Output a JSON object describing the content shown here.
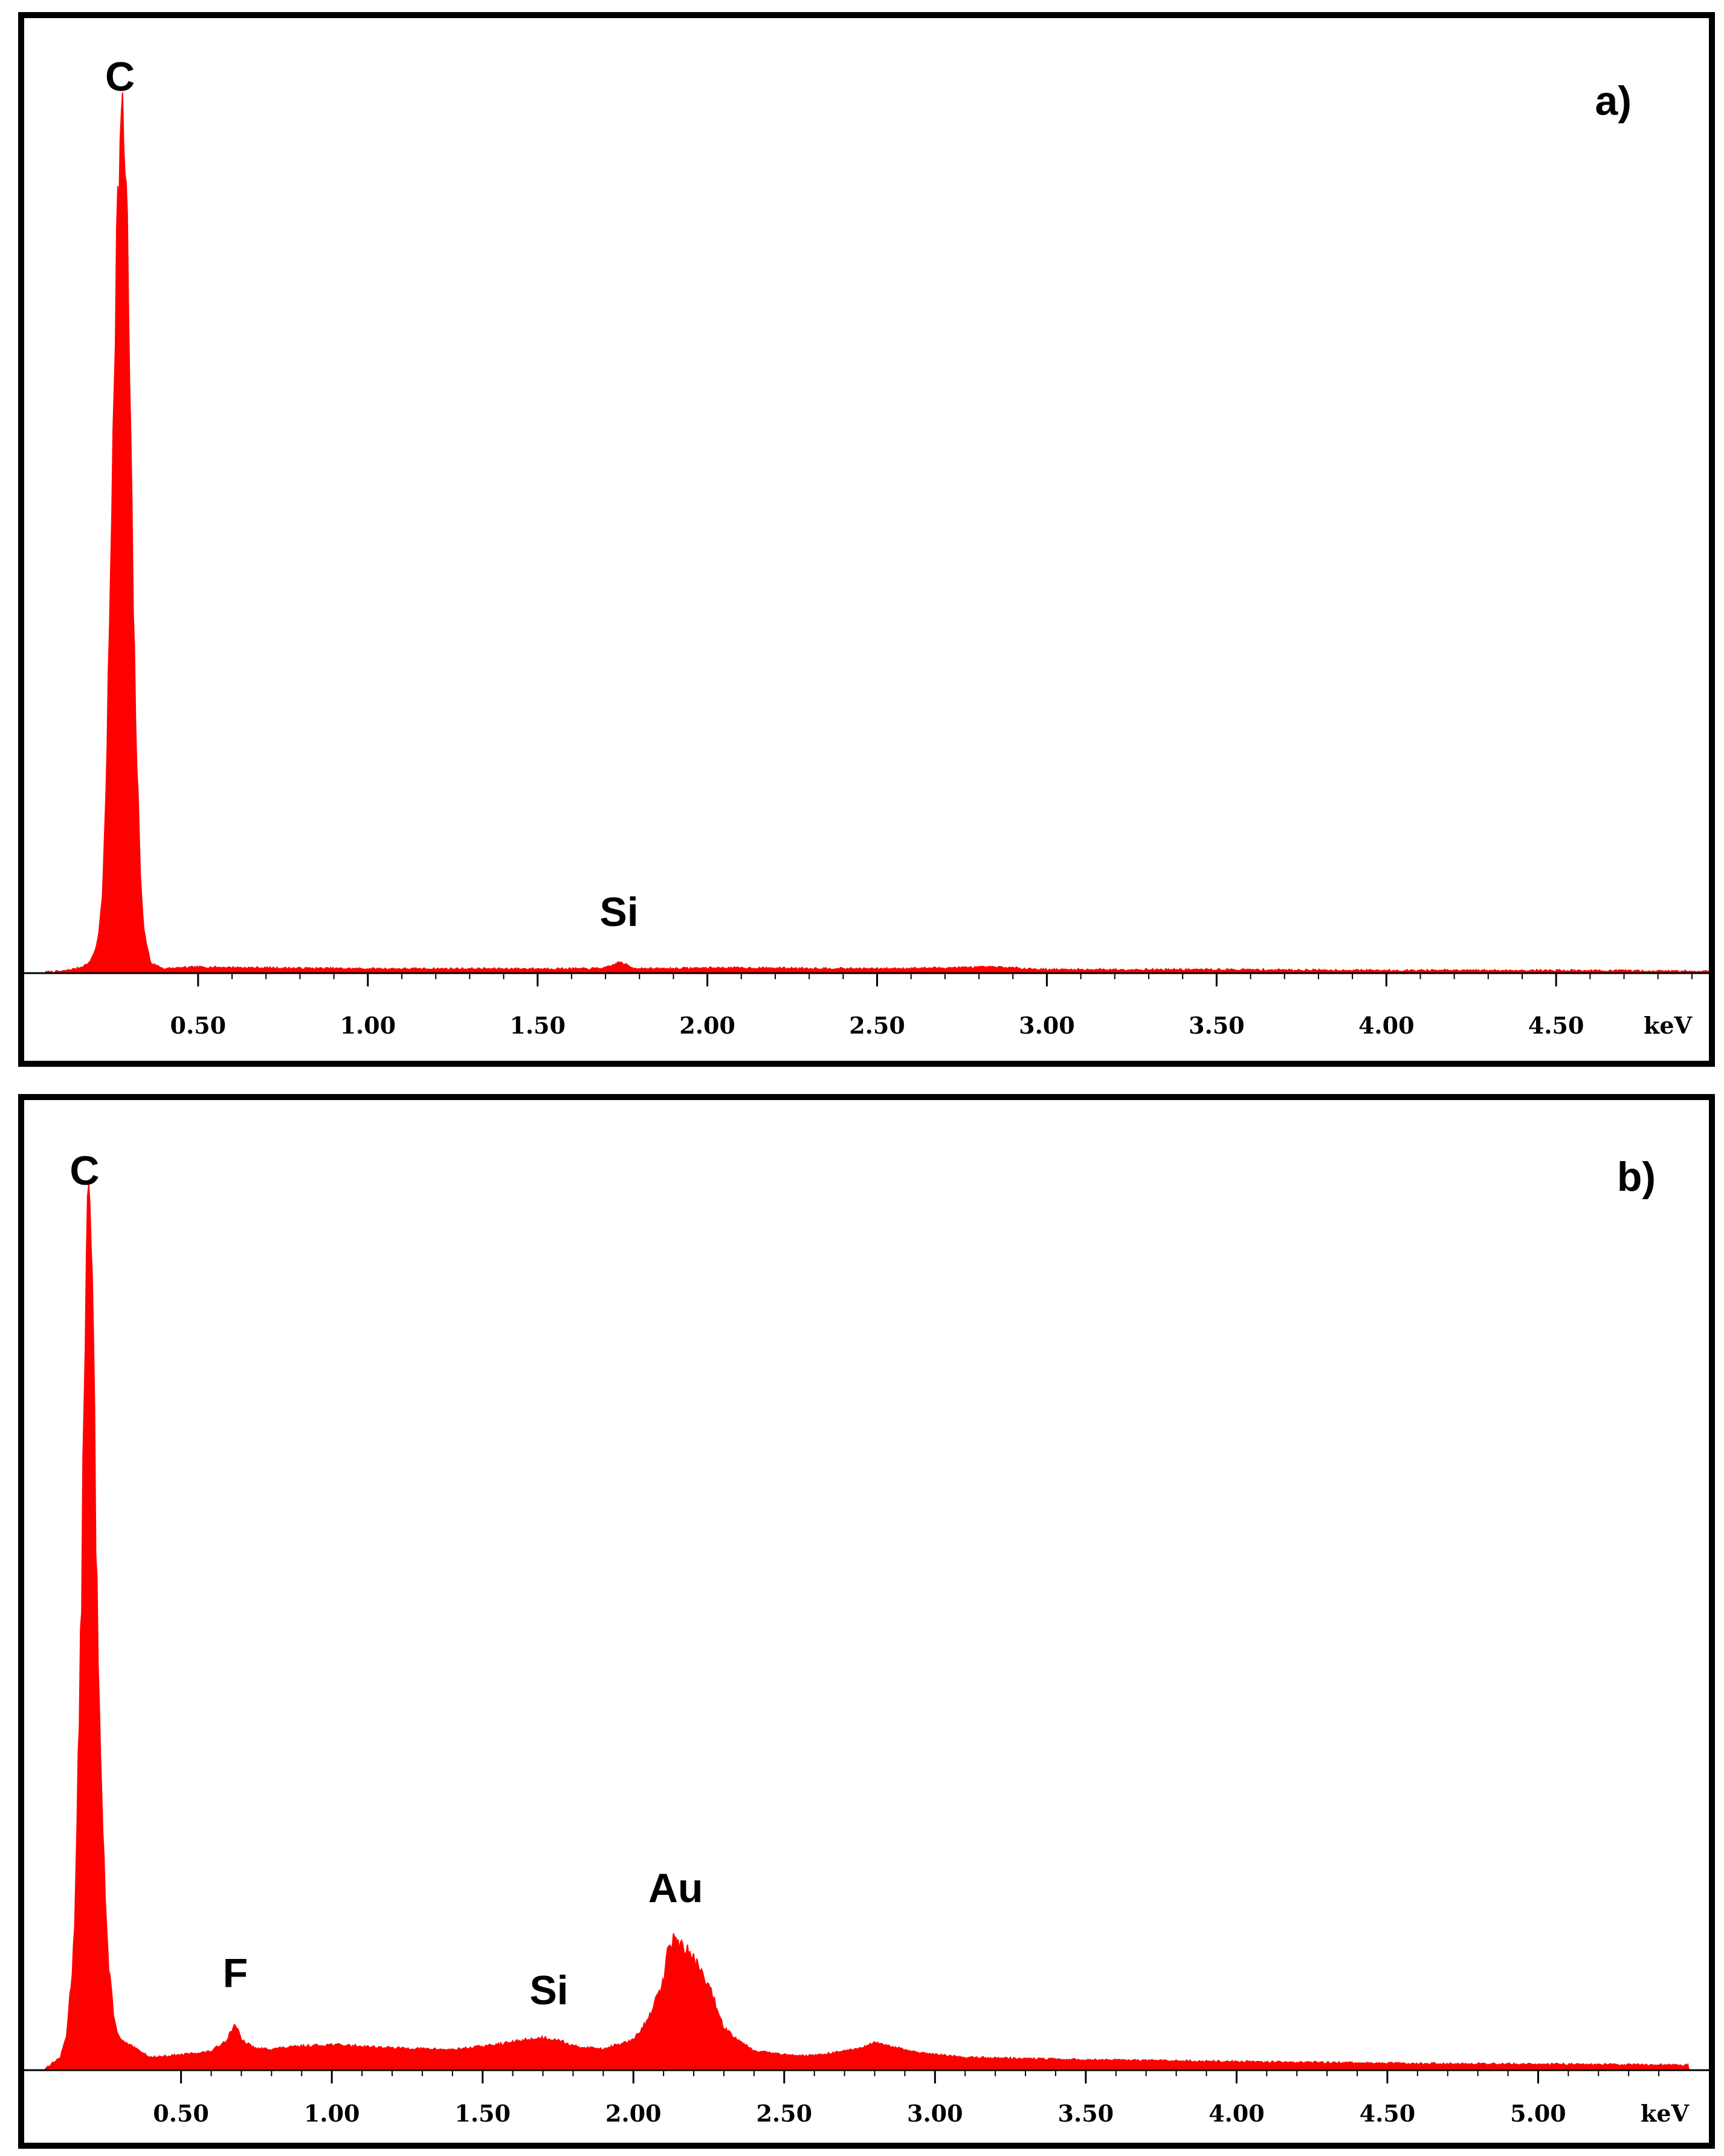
{
  "chart_data": [
    {
      "type": "area",
      "panel_label": "a)",
      "xlabel": "keV",
      "ylabel": "",
      "xlim": [
        0.05,
        4.95
      ],
      "ylim": [
        0,
        100
      ],
      "x_ticks": [
        "0.50",
        "1.00",
        "1.50",
        "2.00",
        "2.50",
        "3.00",
        "3.50",
        "4.00",
        "4.50"
      ],
      "x_tick_values": [
        0.5,
        1.0,
        1.5,
        2.0,
        2.5,
        3.0,
        3.5,
        4.0,
        4.5
      ],
      "color": "#ff0000",
      "grid": false,
      "peaks": [
        {
          "label": "C",
          "x": 0.27,
          "y": 100
        },
        {
          "label": "Si",
          "x": 1.74,
          "y": 1.3
        }
      ],
      "x": [
        0.05,
        0.1,
        0.15,
        0.18,
        0.2,
        0.21,
        0.22,
        0.23,
        0.24,
        0.25,
        0.26,
        0.27,
        0.28,
        0.29,
        0.3,
        0.31,
        0.32,
        0.33,
        0.34,
        0.36,
        0.4,
        0.5,
        0.7,
        1.0,
        1.3,
        1.5,
        1.65,
        1.7,
        1.72,
        1.74,
        1.76,
        1.78,
        1.85,
        2.0,
        2.1,
        2.5,
        2.85,
        3.0,
        3.5,
        4.0,
        4.5,
        4.95
      ],
      "y": [
        0.1,
        0.2,
        0.6,
        1.2,
        3.0,
        5.5,
        10,
        24,
        42,
        66,
        86,
        98,
        100,
        90,
        66,
        41,
        24,
        12,
        5,
        1.2,
        0.5,
        0.7,
        0.6,
        0.5,
        0.5,
        0.5,
        0.5,
        0.6,
        0.9,
        1.3,
        1.0,
        0.6,
        0.5,
        0.6,
        0.6,
        0.5,
        0.7,
        0.4,
        0.4,
        0.3,
        0.3,
        0.2
      ]
    },
    {
      "type": "area",
      "panel_label": "b)",
      "xlabel": "keV",
      "ylabel": "",
      "xlim": [
        0.05,
        5.5
      ],
      "ylim": [
        0,
        100
      ],
      "x_ticks": [
        "0.50",
        "1.00",
        "1.50",
        "2.00",
        "2.50",
        "3.00",
        "3.50",
        "4.00",
        "4.50",
        "5.00"
      ],
      "x_tick_values": [
        0.5,
        1.0,
        1.5,
        2.0,
        2.5,
        3.0,
        3.5,
        4.0,
        4.5,
        5.0
      ],
      "color": "#ff0000",
      "grid": false,
      "peaks": [
        {
          "label": "C",
          "x": 0.18,
          "y": 100
        },
        {
          "label": "F",
          "x": 0.68,
          "y": 5.5
        },
        {
          "label": "Si",
          "x": 1.72,
          "y": 3.5
        },
        {
          "label": "Au",
          "x": 2.14,
          "y": 15.5
        }
      ],
      "x": [
        0.05,
        0.1,
        0.12,
        0.14,
        0.15,
        0.16,
        0.17,
        0.18,
        0.19,
        0.2,
        0.21,
        0.22,
        0.23,
        0.24,
        0.25,
        0.26,
        0.28,
        0.3,
        0.35,
        0.4,
        0.5,
        0.6,
        0.65,
        0.68,
        0.7,
        0.75,
        0.8,
        0.9,
        1.0,
        1.2,
        1.4,
        1.55,
        1.65,
        1.7,
        1.75,
        1.8,
        1.9,
        2.0,
        2.05,
        2.1,
        2.12,
        2.15,
        2.18,
        2.22,
        2.26,
        2.3,
        2.35,
        2.4,
        2.5,
        2.6,
        2.75,
        2.8,
        2.85,
        2.95,
        3.1,
        3.5,
        4.0,
        4.5,
        5.0,
        5.5
      ],
      "y": [
        0.2,
        1.5,
        4,
        12,
        20,
        37,
        55,
        85,
        100,
        100,
        84,
        57,
        43,
        30,
        19,
        12,
        5.5,
        3.5,
        2.5,
        1.5,
        1.8,
        2.2,
        3.5,
        5.5,
        3.5,
        2.5,
        2.5,
        2.8,
        3.0,
        2.6,
        2.4,
        3.0,
        3.6,
        3.8,
        3.6,
        2.8,
        2.5,
        3.5,
        6,
        10.5,
        15.5,
        15,
        14,
        12,
        9,
        5,
        3.5,
        2.3,
        1.8,
        1.7,
        2.5,
        3.2,
        2.8,
        2.0,
        1.5,
        1.2,
        1.0,
        0.8,
        0.7,
        0.6
      ]
    }
  ]
}
